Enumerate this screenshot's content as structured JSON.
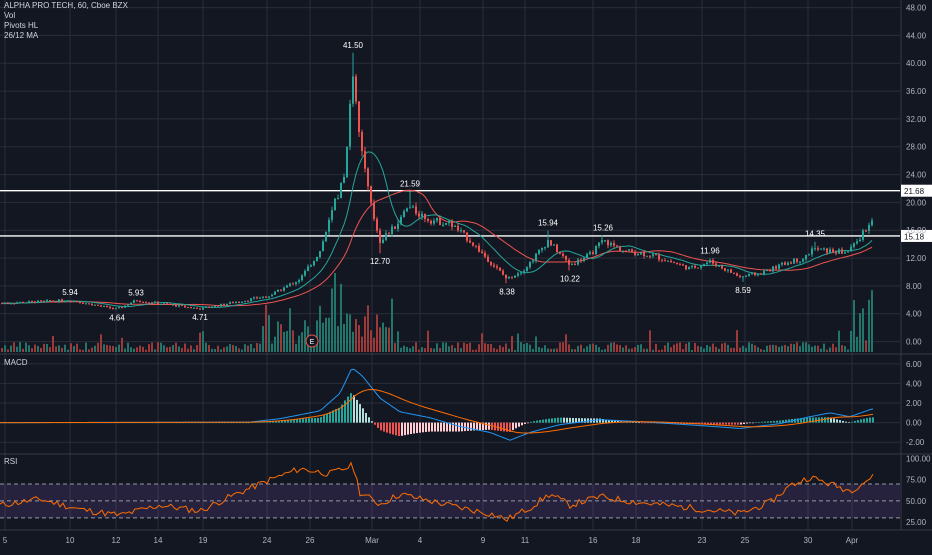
{
  "header": {
    "title": "ALPHA PRO TECH, 60, Cboe BZX",
    "indicators": [
      "Vol",
      "Pivots HL",
      "26/12 MA"
    ]
  },
  "panes": {
    "macd_label": "MACD",
    "rsi_label": "RSI"
  },
  "colors": {
    "background": "#131722",
    "grid": "#2a2e39",
    "up": "#26a69a",
    "down": "#ef5350",
    "ma_fast": "#ef5350",
    "ma_slow": "#26a69a",
    "level_line": "#ffffff",
    "macd_line": "#2196f3",
    "signal_line": "#ff6d00",
    "rsi_line": "#ff6d00",
    "rsi_band": "#7e57c2"
  },
  "chart_data": {
    "type": "candlestick",
    "x_tick_labels": [
      "5",
      "10",
      "12",
      "14",
      "19",
      "24",
      "26",
      "Mar",
      "4",
      "9",
      "11",
      "16",
      "18",
      "23",
      "25",
      "30",
      "Apr"
    ],
    "price_axis": {
      "ticks": [
        0,
        4,
        8,
        12,
        16,
        20,
        24,
        28,
        32,
        36,
        40,
        44,
        48
      ],
      "tick_labels": [
        "0.00",
        "4.00",
        "8.00",
        "12.00",
        "16.00",
        "20.00",
        "24.00",
        "28.00",
        "32.00",
        "36.00",
        "40.00",
        "44.00",
        "48.00"
      ],
      "ylim": [
        -1.5,
        48.8
      ]
    },
    "horizontal_levels": [
      {
        "value": 21.68,
        "label": "21.68"
      },
      {
        "value": 15.18,
        "label": "15.18"
      }
    ],
    "price_anchors": [
      {
        "x": 0,
        "y": 5.5
      },
      {
        "x": 70,
        "y": 5.94
      },
      {
        "x": 117,
        "y": 4.64
      },
      {
        "x": 136,
        "y": 5.93
      },
      {
        "x": 200,
        "y": 4.71
      },
      {
        "x": 240,
        "y": 5.8
      },
      {
        "x": 270,
        "y": 6.6
      },
      {
        "x": 300,
        "y": 9.0
      },
      {
        "x": 320,
        "y": 13.0
      },
      {
        "x": 335,
        "y": 20.0
      },
      {
        "x": 345,
        "y": 24.0
      },
      {
        "x": 353,
        "y": 39.0
      },
      {
        "x": 358,
        "y": 30.0
      },
      {
        "x": 365,
        "y": 25.0
      },
      {
        "x": 370,
        "y": 20.0
      },
      {
        "x": 380,
        "y": 14.5
      },
      {
        "x": 395,
        "y": 16.5
      },
      {
        "x": 408,
        "y": 19.3
      },
      {
        "x": 430,
        "y": 17.5
      },
      {
        "x": 450,
        "y": 17.0
      },
      {
        "x": 470,
        "y": 14.5
      },
      {
        "x": 490,
        "y": 11.5
      },
      {
        "x": 507,
        "y": 9.0
      },
      {
        "x": 525,
        "y": 10.5
      },
      {
        "x": 548,
        "y": 14.5
      },
      {
        "x": 570,
        "y": 11.0
      },
      {
        "x": 590,
        "y": 12.5
      },
      {
        "x": 603,
        "y": 14.5
      },
      {
        "x": 625,
        "y": 13.0
      },
      {
        "x": 650,
        "y": 12.5
      },
      {
        "x": 690,
        "y": 10.5
      },
      {
        "x": 710,
        "y": 11.5
      },
      {
        "x": 740,
        "y": 9.3
      },
      {
        "x": 760,
        "y": 9.8
      },
      {
        "x": 790,
        "y": 11.5
      },
      {
        "x": 805,
        "y": 12.0
      },
      {
        "x": 812,
        "y": 13.3
      },
      {
        "x": 830,
        "y": 13.0
      },
      {
        "x": 845,
        "y": 12.8
      },
      {
        "x": 855,
        "y": 14.0
      },
      {
        "x": 870,
        "y": 17.0
      }
    ],
    "pivots": [
      {
        "x": 353,
        "value": 41.5,
        "label": "41.50",
        "kind": "high"
      },
      {
        "x": 410,
        "value": 21.59,
        "label": "21.59",
        "kind": "high"
      },
      {
        "x": 380,
        "value": 12.7,
        "label": "12.70",
        "kind": "low"
      },
      {
        "x": 548,
        "value": 15.94,
        "label": "15.94",
        "kind": "high"
      },
      {
        "x": 603,
        "value": 15.26,
        "label": "15.26",
        "kind": "high"
      },
      {
        "x": 507,
        "value": 8.38,
        "label": "8.38",
        "kind": "low"
      },
      {
        "x": 570,
        "value": 10.22,
        "label": "10.22",
        "kind": "low"
      },
      {
        "x": 710,
        "value": 11.96,
        "label": "11.96",
        "kind": "high"
      },
      {
        "x": 743,
        "value": 8.59,
        "label": "8.59",
        "kind": "low"
      },
      {
        "x": 815,
        "value": 14.35,
        "label": "14.35",
        "kind": "high"
      },
      {
        "x": 70,
        "value": 5.94,
        "label": "5.94",
        "kind": "high"
      },
      {
        "x": 136,
        "value": 5.93,
        "label": "5.93",
        "kind": "high"
      },
      {
        "x": 117,
        "value": 4.64,
        "label": "4.64",
        "kind": "low"
      },
      {
        "x": 200,
        "value": 4.71,
        "label": "4.71",
        "kind": "low"
      }
    ],
    "earnings_marker": {
      "x": 312,
      "label": "E"
    },
    "macd_axis": {
      "ticks": [
        -2,
        0,
        2,
        4,
        6
      ],
      "tick_labels": [
        "-2.00",
        "0.00",
        "2.00",
        "4.00",
        "6.00"
      ],
      "ylim": [
        -3,
        6.8
      ]
    },
    "macd_anchors": [
      {
        "x": 0,
        "y": 0
      },
      {
        "x": 250,
        "y": 0.05
      },
      {
        "x": 280,
        "y": 0.4
      },
      {
        "x": 320,
        "y": 1.2
      },
      {
        "x": 340,
        "y": 3.0
      },
      {
        "x": 352,
        "y": 5.6
      },
      {
        "x": 362,
        "y": 4.8
      },
      {
        "x": 380,
        "y": 2.5
      },
      {
        "x": 400,
        "y": 1.1
      },
      {
        "x": 430,
        "y": 0.5
      },
      {
        "x": 460,
        "y": -0.4
      },
      {
        "x": 490,
        "y": -1.0
      },
      {
        "x": 510,
        "y": -1.8
      },
      {
        "x": 530,
        "y": -1.0
      },
      {
        "x": 560,
        "y": -0.2
      },
      {
        "x": 600,
        "y": 0.3
      },
      {
        "x": 640,
        "y": 0.1
      },
      {
        "x": 700,
        "y": -0.3
      },
      {
        "x": 740,
        "y": -0.6
      },
      {
        "x": 780,
        "y": -0.1
      },
      {
        "x": 810,
        "y": 0.6
      },
      {
        "x": 830,
        "y": 1.0
      },
      {
        "x": 850,
        "y": 0.6
      },
      {
        "x": 872,
        "y": 1.4
      }
    ],
    "rsi_axis": {
      "ticks": [
        25,
        50,
        75,
        100
      ],
      "tick_labels": [
        "25.00",
        "50.00",
        "75.00",
        "100.00"
      ],
      "ylim": [
        18,
        103
      ],
      "band": [
        30,
        70
      ]
    },
    "rsi_anchors": [
      {
        "x": 0,
        "y": 45
      },
      {
        "x": 40,
        "y": 52
      },
      {
        "x": 80,
        "y": 40
      },
      {
        "x": 120,
        "y": 33
      },
      {
        "x": 160,
        "y": 45
      },
      {
        "x": 200,
        "y": 38
      },
      {
        "x": 230,
        "y": 55
      },
      {
        "x": 270,
        "y": 75
      },
      {
        "x": 300,
        "y": 88
      },
      {
        "x": 330,
        "y": 82
      },
      {
        "x": 353,
        "y": 92
      },
      {
        "x": 360,
        "y": 60
      },
      {
        "x": 380,
        "y": 46
      },
      {
        "x": 400,
        "y": 58
      },
      {
        "x": 430,
        "y": 50
      },
      {
        "x": 460,
        "y": 42
      },
      {
        "x": 490,
        "y": 35
      },
      {
        "x": 507,
        "y": 28
      },
      {
        "x": 530,
        "y": 42
      },
      {
        "x": 550,
        "y": 58
      },
      {
        "x": 570,
        "y": 45
      },
      {
        "x": 600,
        "y": 55
      },
      {
        "x": 640,
        "y": 48
      },
      {
        "x": 690,
        "y": 42
      },
      {
        "x": 740,
        "y": 35
      },
      {
        "x": 770,
        "y": 48
      },
      {
        "x": 790,
        "y": 68
      },
      {
        "x": 810,
        "y": 78
      },
      {
        "x": 830,
        "y": 70
      },
      {
        "x": 850,
        "y": 62
      },
      {
        "x": 872,
        "y": 78
      }
    ]
  }
}
